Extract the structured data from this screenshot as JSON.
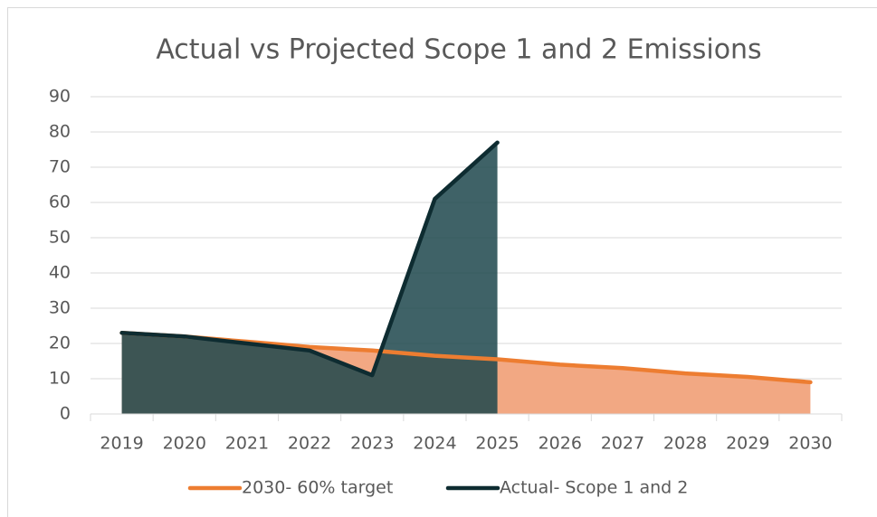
{
  "chart_data": {
    "type": "area",
    "title": "Actual vs Projected Scope 1 and 2 Emissions",
    "categories": [
      "2019",
      "2020",
      "2021",
      "2022",
      "2023",
      "2024",
      "2025",
      "2026",
      "2027",
      "2028",
      "2029",
      "2030"
    ],
    "series": [
      {
        "name": "2030- 60% target",
        "color": "#ed7d31",
        "area_color": "#f2a883",
        "values": [
          23,
          22,
          20.5,
          19,
          18,
          16.5,
          15.5,
          14,
          13,
          11.5,
          10.5,
          9
        ]
      },
      {
        "name": "Actual- Scope 1 and 2",
        "color": "#0e2c31",
        "area_color": "#1d464c",
        "values": [
          23,
          22,
          20,
          18,
          11,
          61,
          77,
          null,
          null,
          null,
          null,
          null
        ]
      }
    ],
    "ylim": [
      0,
      90
    ],
    "yticks": [
      0,
      10,
      20,
      30,
      40,
      50,
      60,
      70,
      80,
      90
    ],
    "grid": true
  }
}
